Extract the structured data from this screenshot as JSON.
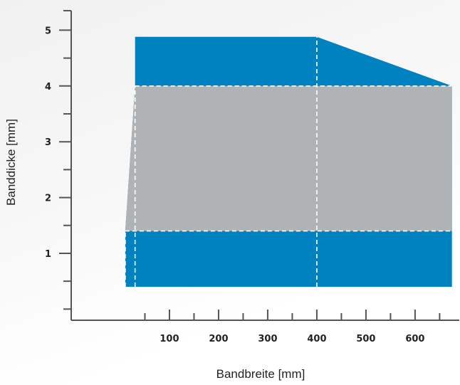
{
  "chart_data": {
    "type": "area",
    "title": "",
    "xlabel": "Bandbreite [mm]",
    "ylabel": "Banddicke [mm]",
    "xlim": [
      -100,
      690
    ],
    "ylim": [
      -0.2,
      5.35
    ],
    "xticks": [
      100,
      200,
      300,
      400,
      500,
      600
    ],
    "xtick_labels": [
      "100",
      "200",
      "300",
      "400",
      "500",
      "600"
    ],
    "yticks": [
      1,
      2,
      3,
      4,
      5
    ],
    "ytick_labels": [
      "1",
      "2",
      "3",
      "4",
      "5"
    ],
    "grid": false,
    "legend": "none",
    "regions": [
      {
        "color": "#0082c0",
        "polygon": [
          [
            10,
            0.4
          ],
          [
            675,
            0.4
          ],
          [
            675,
            4.0
          ],
          [
            400,
            4.88
          ],
          [
            30,
            4.88
          ],
          [
            30,
            4.0
          ],
          [
            10,
            1.4
          ]
        ]
      },
      {
        "color": "#b0b3b5",
        "polygon": [
          [
            10,
            1.4
          ],
          [
            30,
            4.0
          ],
          [
            675,
            4.0
          ],
          [
            675,
            1.4
          ]
        ]
      }
    ],
    "dashed_lines": [
      {
        "from": [
          30,
          0.4
        ],
        "to": [
          30,
          4.0
        ]
      },
      {
        "from": [
          10,
          0.4
        ],
        "to": [
          10,
          1.4
        ]
      },
      {
        "from": [
          400,
          0.4
        ],
        "to": [
          400,
          4.88
        ]
      },
      {
        "from": [
          10,
          1.4
        ],
        "to": [
          675,
          1.4
        ]
      },
      {
        "from": [
          30,
          4.0
        ],
        "to": [
          675,
          4.0
        ]
      }
    ],
    "colors": {
      "axis": "#555555",
      "blue": "#0082c0",
      "gray": "#b0b3b5",
      "dash": "#ffffff"
    }
  }
}
